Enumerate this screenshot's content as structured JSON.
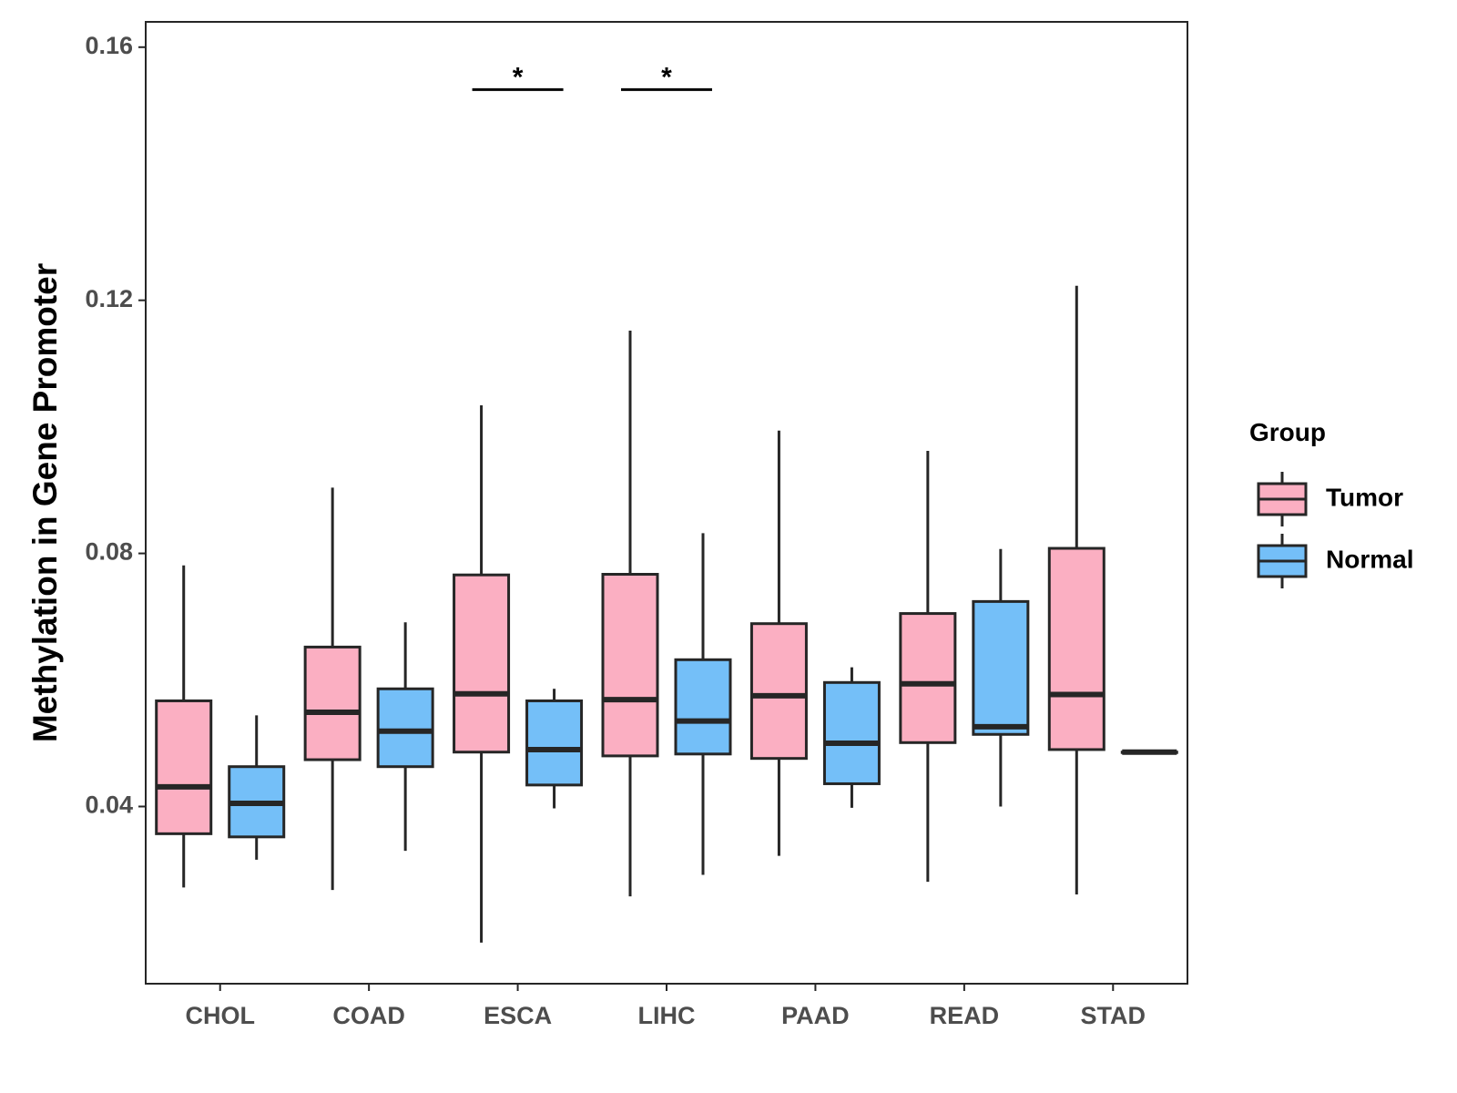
{
  "chart_data": {
    "type": "boxplot",
    "title": "",
    "xlabel": "",
    "ylabel": "Methylation in Gene Promoter",
    "ylim": [
      0.012,
      0.164
    ],
    "yticks": [
      0.04,
      0.08,
      0.12,
      0.16
    ],
    "ytick_labels": [
      "0.04",
      "0.08",
      "0.12",
      "0.16"
    ],
    "categories": [
      "CHOL",
      "COAD",
      "ESCA",
      "LIHC",
      "PAAD",
      "READ",
      "STAD"
    ],
    "legend": {
      "title": "Group",
      "position": "right",
      "entries": [
        "Tumor",
        "Normal"
      ]
    },
    "colors": {
      "Tumor": "#FBAFC2",
      "Normal": "#74BFF8",
      "outline": "#262626"
    },
    "series": [
      {
        "name": "Tumor",
        "boxes": [
          {
            "category": "CHOL",
            "min": 0.0272,
            "q1": 0.0357,
            "median": 0.0431,
            "q3": 0.0567,
            "max": 0.0781
          },
          {
            "category": "COAD",
            "min": 0.0268,
            "q1": 0.0474,
            "median": 0.0549,
            "q3": 0.0652,
            "max": 0.0904
          },
          {
            "category": "ESCA",
            "min": 0.0185,
            "q1": 0.0486,
            "median": 0.0578,
            "q3": 0.0766,
            "max": 0.1034
          },
          {
            "category": "LIHC",
            "min": 0.0258,
            "q1": 0.048,
            "median": 0.0569,
            "q3": 0.0767,
            "max": 0.1152
          },
          {
            "category": "PAAD",
            "min": 0.0322,
            "q1": 0.0476,
            "median": 0.0575,
            "q3": 0.0689,
            "max": 0.0994
          },
          {
            "category": "READ",
            "min": 0.0281,
            "q1": 0.0501,
            "median": 0.0594,
            "q3": 0.0705,
            "max": 0.0962
          },
          {
            "category": "STAD",
            "min": 0.0261,
            "q1": 0.049,
            "median": 0.0577,
            "q3": 0.0808,
            "max": 0.1223
          }
        ]
      },
      {
        "name": "Normal",
        "boxes": [
          {
            "category": "CHOL",
            "min": 0.0316,
            "q1": 0.0352,
            "median": 0.0405,
            "q3": 0.0463,
            "max": 0.0544
          },
          {
            "category": "COAD",
            "min": 0.033,
            "q1": 0.0463,
            "median": 0.0519,
            "q3": 0.0586,
            "max": 0.0691
          },
          {
            "category": "ESCA",
            "min": 0.0397,
            "q1": 0.0434,
            "median": 0.049,
            "q3": 0.0567,
            "max": 0.0586
          },
          {
            "category": "LIHC",
            "min": 0.0292,
            "q1": 0.0483,
            "median": 0.0535,
            "q3": 0.0632,
            "max": 0.0832
          },
          {
            "category": "PAAD",
            "min": 0.0398,
            "q1": 0.0436,
            "median": 0.05,
            "q3": 0.0596,
            "max": 0.062
          },
          {
            "category": "READ",
            "min": 0.04,
            "q1": 0.0514,
            "median": 0.0526,
            "q3": 0.0724,
            "max": 0.0807
          },
          {
            "category": "STAD",
            "min": 0.0486,
            "q1": 0.0486,
            "median": 0.0486,
            "q3": 0.0486,
            "max": 0.0486
          }
        ]
      }
    ],
    "significance": [
      {
        "category": "ESCA",
        "label": "*",
        "y": 0.1533
      },
      {
        "category": "LIHC",
        "label": "*",
        "y": 0.1533
      }
    ]
  }
}
